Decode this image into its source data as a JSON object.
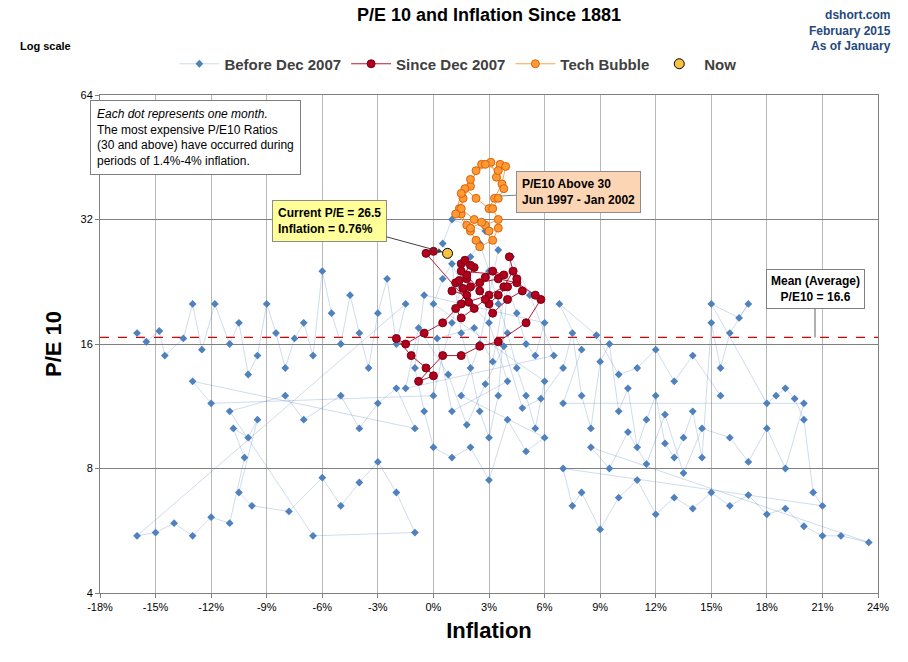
{
  "chart_data": {
    "type": "scatter",
    "title": "P/E 10 and Inflation Since 1881",
    "source": "dshort.com\nFebruary 2015\nAs of January",
    "scale_note": "Log scale",
    "note": "Each dot represents one month.\nThe most expensive P/E10 Ratios\n(30 and above) have occurred during\nperiods of 1.4%-4% inflation.",
    "xlabel": "Inflation",
    "ylabel": "P/E 10",
    "log": "y",
    "grid": true,
    "legend": "top",
    "xlim": [
      -18,
      24
    ],
    "xticks": [
      {
        "value": -18,
        "label": "-18%"
      },
      {
        "value": -15,
        "label": "-15%"
      },
      {
        "value": -12,
        "label": "-12%"
      },
      {
        "value": -9,
        "label": "-9%"
      },
      {
        "value": -6,
        "label": "-6%"
      },
      {
        "value": -3,
        "label": "-3%"
      },
      {
        "value": 0,
        "label": "0%"
      },
      {
        "value": 3,
        "label": "3%"
      },
      {
        "value": 6,
        "label": "6%"
      },
      {
        "value": 9,
        "label": "9%"
      },
      {
        "value": 12,
        "label": "12%"
      },
      {
        "value": 15,
        "label": "15%"
      },
      {
        "value": 18,
        "label": "18%"
      },
      {
        "value": 21,
        "label": "21%"
      },
      {
        "value": 24,
        "label": "24%"
      }
    ],
    "ylim": [
      4,
      64
    ],
    "yticks": [
      4,
      8,
      16,
      32,
      64
    ],
    "reference_line": {
      "value": 16.6,
      "label": "Mean (Average)\nP/E10 = 16.6",
      "color": "#e00000",
      "line_style": "dash"
    },
    "callouts": [
      {
        "text": "Current P/E = 26.5\nInflation = 0.76%",
        "series": "Now"
      },
      {
        "text": "P/E10 Above 30\nJun 1997 - Jan 2002",
        "series": "Tech Bubble"
      }
    ],
    "series": [
      {
        "name": "Before Dec 2007",
        "color": "#4f81bd",
        "marker": "diamond",
        "line_style": "solid",
        "x": [
          -16,
          -15.5,
          -14.8,
          -14.5,
          -13.5,
          -13,
          -12.5,
          -11.8,
          -11,
          -10.5,
          -10,
          -9.5,
          -9,
          -8.5,
          -8,
          -7.5,
          -7,
          -6.5,
          -6,
          -5.5,
          -5,
          -4.5,
          -4,
          -3.5,
          -3,
          -2.5,
          -2,
          -1.5,
          -16,
          -15,
          -14,
          -13,
          -12,
          -11,
          -10.2,
          -10.8,
          -10,
          -9.5,
          -10.5,
          -9.8,
          -7.8,
          -6,
          -5,
          -4,
          -3,
          -2,
          -1,
          -6.5,
          -11,
          -8,
          -7,
          -5,
          -4,
          -3,
          -2,
          -1,
          -13,
          -12,
          0,
          0.5,
          1,
          1.5,
          2,
          2.5,
          3,
          3.5,
          4,
          4.5,
          5,
          5.5,
          6,
          0,
          0.5,
          1,
          1.5,
          2,
          2.5,
          3,
          3.5,
          4,
          4.5,
          5,
          5.5,
          6,
          -0.5,
          -1,
          -0.5,
          0,
          1,
          2,
          3,
          4,
          5,
          6,
          1.5,
          2.5,
          3.5,
          2.8,
          1,
          0.5,
          2,
          3,
          4,
          1,
          0.2,
          2.2,
          3.2,
          4.2,
          5.2,
          6.5,
          -1.5,
          -0.8,
          0.8,
          1.8,
          2.8,
          3.8,
          4.8,
          5.8,
          7,
          7.5,
          8,
          8.5,
          9,
          9.5,
          10,
          10.5,
          11,
          11.5,
          12,
          12.5,
          13,
          13.5,
          14,
          14.5,
          15,
          15.5,
          16,
          17,
          16.5,
          15,
          18,
          18.5,
          19,
          19.5,
          20,
          20.5,
          21,
          7,
          7.5,
          8,
          9,
          10,
          11,
          12,
          13,
          14,
          15,
          16,
          17,
          18,
          19,
          20,
          21,
          22,
          23.5,
          8.5,
          9.5,
          10.5,
          11.5,
          12.5,
          13.5,
          14.5,
          16,
          17,
          18,
          19,
          20,
          7,
          8,
          6.8,
          8.8,
          10,
          11,
          12,
          13,
          14,
          15.5
        ],
        "values": [
          17,
          16.2,
          17.2,
          15,
          16.5,
          20,
          15.5,
          20,
          16,
          18,
          13.5,
          15,
          20,
          17,
          14,
          16.5,
          18,
          15,
          24,
          19,
          16,
          21,
          17,
          14,
          19,
          23,
          16,
          20,
          5.5,
          5.6,
          5.9,
          5.5,
          6.1,
          5.9,
          8.5,
          10,
          9.5,
          10.5,
          7,
          6.5,
          6.3,
          7.6,
          6.5,
          7.4,
          8.3,
          7,
          5.6,
          5.5,
          11,
          12,
          10.5,
          12,
          10,
          11.5,
          12.5,
          10,
          13,
          11.5,
          12,
          15,
          18,
          22,
          26,
          28,
          24,
          20,
          17,
          14,
          12,
          10,
          13,
          20,
          23,
          25,
          17,
          14,
          11,
          9.5,
          12,
          22,
          19,
          16,
          15,
          18,
          21,
          14,
          11,
          9,
          8.5,
          9,
          7.5,
          10.5,
          8.8,
          9.5,
          12,
          16,
          27,
          30,
          32,
          28,
          20,
          18,
          13,
          11,
          16.5,
          17.5,
          14.5,
          26,
          21,
          15,
          12.5,
          17.5,
          13.5,
          10.2,
          12.8,
          15.8,
          11.2,
          11.8,
          14,
          17,
          12,
          10,
          14.5,
          16,
          11,
          12.5,
          9,
          10.5,
          12,
          9.2,
          8.5,
          9.5,
          11,
          8.5,
          18,
          14,
          17,
          20,
          18.5,
          20,
          11.5,
          12,
          12.5,
          11.8,
          10.5,
          7,
          6.5,
          8,
          6.5,
          7,
          5.7,
          6.8,
          7.5,
          6.2,
          6.8,
          6.4,
          7,
          6.5,
          6.9,
          6.2,
          6.4,
          5.8,
          5.5,
          5.5,
          5.3,
          9,
          8,
          9.8,
          8.2,
          10.8,
          7.8,
          10,
          9.5,
          8.3,
          10,
          8,
          11.5,
          11.5,
          15.5,
          20,
          16.8,
          13.5,
          14,
          15.5,
          13,
          15,
          12
        ]
      },
      {
        "name": "Since Dec 2007",
        "color": "#b0001e",
        "marker": "circle",
        "line_style": "solid",
        "x": [
          4.1,
          4.3,
          3.8,
          3,
          1.5,
          0.5,
          -0.5,
          -1.5,
          -2,
          -1.2,
          -0.4,
          0,
          -0.8,
          0.5,
          1.5,
          2.5,
          3.5,
          5,
          5.8,
          5.5,
          4.5,
          3.5,
          2.5,
          1.8,
          1,
          1.2,
          1.8,
          2.2,
          1.5,
          1.8,
          2.5,
          3,
          3.5,
          4,
          4.5,
          4.8,
          4,
          3.2,
          2.8,
          2.2,
          1.5,
          1.2,
          2,
          2.8,
          3.2,
          3.8,
          1.5,
          1.7,
          2.0,
          1.4,
          1.6,
          1.9,
          -0.4,
          0
        ],
        "values": [
          26,
          24,
          22,
          21,
          20,
          18,
          17,
          16,
          16.5,
          15,
          14,
          13.4,
          13,
          15,
          15,
          15.8,
          16.2,
          18,
          20.5,
          21,
          22.5,
          23,
          22.5,
          21,
          21.5,
          22.5,
          23,
          24.5,
          25,
          23.5,
          21.5,
          20,
          21,
          22,
          23,
          21.5,
          20.5,
          19,
          20.5,
          19.5,
          18.5,
          19.5,
          22,
          23.2,
          24,
          23.5,
          24,
          25.5,
          24.8,
          22.8,
          21.8,
          20.2,
          26.5,
          26.8
        ]
      },
      {
        "name": "Tech Bubble",
        "color": "#ff9933",
        "marker": "circle",
        "line_style": "solid",
        "x": [
          2.3,
          2.0,
          1.8,
          1.5,
          1.4,
          1.6,
          2.0,
          2.3,
          2.6,
          3.1,
          3.4,
          3.6,
          3.9,
          3.7,
          3.3,
          3.0,
          2.3,
          1.7,
          1.5,
          2.2,
          2.8,
          3.5,
          3.2,
          3.5,
          3.8,
          3.5,
          2.8,
          2.0,
          1.5,
          1.2,
          2.0,
          2.6,
          3.0,
          3.5,
          3.2,
          2.5
        ],
        "values": [
          28.5,
          30,
          31,
          33,
          34,
          36,
          38.5,
          42,
          43.5,
          44,
          40.5,
          43.5,
          43,
          39,
          36,
          34,
          36,
          38,
          34,
          32,
          31,
          32,
          34,
          36,
          38,
          42,
          43.5,
          40,
          37,
          33,
          30.5,
          31.5,
          30,
          30.5,
          28.5,
          27.5
        ]
      },
      {
        "name": "Now",
        "color": "#f5c242",
        "marker": "circle",
        "line_style": "none",
        "x": [
          0.76
        ],
        "values": [
          26.5
        ]
      }
    ]
  }
}
